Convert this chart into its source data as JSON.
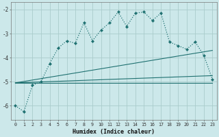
{
  "xlabel": "Humidex (Indice chaleur)",
  "bg_color": "#cce8ea",
  "grid_color": "#aacccc",
  "line_color": "#1e7070",
  "xlim": [
    -0.5,
    23.5
  ],
  "ylim": [
    -6.6,
    -1.7
  ],
  "yticks": [
    -6,
    -5,
    -4,
    -3,
    -2
  ],
  "xticks": [
    0,
    1,
    2,
    3,
    4,
    5,
    6,
    7,
    8,
    9,
    10,
    11,
    12,
    13,
    14,
    15,
    16,
    17,
    18,
    19,
    20,
    21,
    22,
    23
  ],
  "main_x": [
    0,
    1,
    2,
    3,
    4,
    5,
    6,
    7,
    8,
    9,
    10,
    11,
    12,
    13,
    14,
    15,
    16,
    17,
    18,
    19,
    20,
    21,
    22,
    23
  ],
  "main_y": [
    -6.0,
    -6.25,
    -5.15,
    -5.0,
    -4.25,
    -3.6,
    -3.3,
    -3.4,
    -2.55,
    -3.3,
    -2.85,
    -2.55,
    -2.1,
    -2.7,
    -2.15,
    -2.1,
    -2.45,
    -2.15,
    -3.35,
    -3.5,
    -3.65,
    -3.35,
    -3.9,
    -4.9
  ],
  "line1_x": [
    0,
    23
  ],
  "line1_y": [
    -5.05,
    -5.05
  ],
  "line2_x": [
    0,
    23
  ],
  "line2_y": [
    -5.05,
    -4.75
  ],
  "line3_x": [
    0,
    23
  ],
  "line3_y": [
    -5.05,
    -3.7
  ]
}
